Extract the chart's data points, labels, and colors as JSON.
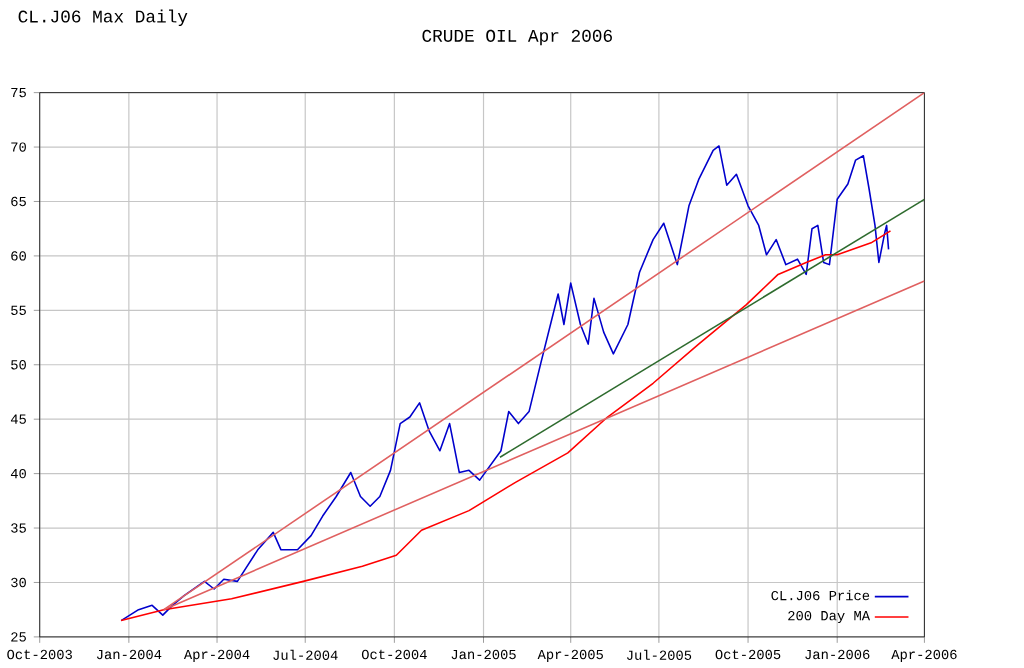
{
  "chart_data": {
    "type": "line",
    "title": "CRUDE OIL Apr 2006",
    "annotations": [
      "CL.J06 Max Daily"
    ],
    "xlim": [
      "2003-10-01",
      "2006-04-01"
    ],
    "xticks": [
      {
        "value": "2003-10-01",
        "label": "Oct-2003"
      },
      {
        "value": "2004-01-01",
        "label": "Jan-2004"
      },
      {
        "value": "2004-04-01",
        "label": "Apr-2004"
      },
      {
        "value": "2004-07-01",
        "label": "Jul-2004"
      },
      {
        "value": "2004-10-01",
        "label": "Oct-2004"
      },
      {
        "value": "2005-01-01",
        "label": "Jan-2005"
      },
      {
        "value": "2005-04-01",
        "label": "Apr-2005"
      },
      {
        "value": "2005-07-01",
        "label": "Jul-2005"
      },
      {
        "value": "2005-10-01",
        "label": "Oct-2005"
      },
      {
        "value": "2006-01-01",
        "label": "Jan-2006"
      },
      {
        "value": "2006-04-01",
        "label": "Apr-2006"
      }
    ],
    "ylim": [
      25,
      75
    ],
    "yticks": [
      25,
      30,
      35,
      40,
      45,
      50,
      55,
      60,
      65,
      70,
      75
    ],
    "grid": true,
    "legend": "bottom right",
    "series": [
      {
        "name": "CL.J06 Price",
        "color": "#0000cc",
        "x": [
          "2003-12-24",
          "2004-01-11",
          "2004-01-25",
          "2004-02-05",
          "2004-02-15",
          "2004-02-27",
          "2004-03-19",
          "2004-03-29",
          "2004-04-08",
          "2004-04-22",
          "2004-05-13",
          "2004-05-29",
          "2004-06-06",
          "2004-06-23",
          "2004-07-07",
          "2004-07-19",
          "2004-08-02",
          "2004-08-17",
          "2004-08-27",
          "2004-09-06",
          "2004-09-16",
          "2004-09-27",
          "2004-10-07",
          "2004-10-17",
          "2004-10-27",
          "2004-11-06",
          "2004-11-17",
          "2004-11-27",
          "2004-12-07",
          "2004-12-17",
          "2004-12-28",
          "2005-01-19",
          "2005-01-27",
          "2005-02-06",
          "2005-02-17",
          "2005-03-01",
          "2005-03-19",
          "2005-03-25",
          "2005-04-01",
          "2005-04-11",
          "2005-04-19",
          "2005-04-25",
          "2005-05-05",
          "2005-05-15",
          "2005-05-30",
          "2005-06-11",
          "2005-06-25",
          "2005-07-06",
          "2005-07-20",
          "2005-08-01",
          "2005-08-11",
          "2005-08-26",
          "2005-09-01",
          "2005-09-09",
          "2005-09-19",
          "2005-10-01",
          "2005-10-12",
          "2005-10-20",
          "2005-10-30",
          "2005-11-09",
          "2005-11-21",
          "2005-11-30",
          "2005-12-06",
          "2005-12-12",
          "2005-12-18",
          "2005-12-24",
          "2006-01-01",
          "2006-01-12",
          "2006-01-20",
          "2006-01-28",
          "2006-02-03",
          "2006-02-09",
          "2006-02-13",
          "2006-02-19",
          "2006-02-21",
          "2006-02-23"
        ],
        "values": [
          26.5,
          27.5,
          27.9,
          27.0,
          27.9,
          28.8,
          30.1,
          29.4,
          30.3,
          30.1,
          33.0,
          34.6,
          33.0,
          33.0,
          34.3,
          36.1,
          37.9,
          40.1,
          37.9,
          37.0,
          37.9,
          40.3,
          44.6,
          45.2,
          46.5,
          43.9,
          42.1,
          44.6,
          40.1,
          40.3,
          39.4,
          42.1,
          45.7,
          44.6,
          45.7,
          50.1,
          56.5,
          53.7,
          57.5,
          53.7,
          51.9,
          56.1,
          53.0,
          51.0,
          53.7,
          58.5,
          61.5,
          63.0,
          59.2,
          64.6,
          67.0,
          69.7,
          70.1,
          66.5,
          67.5,
          64.6,
          62.8,
          60.1,
          61.5,
          59.2,
          59.7,
          58.3,
          62.5,
          62.8,
          59.4,
          59.2,
          65.2,
          66.6,
          68.8,
          69.2,
          66.1,
          62.8,
          59.4,
          62.1,
          62.8,
          60.6
        ]
      },
      {
        "name": "200 Day MA",
        "color": "#ff0000",
        "x": [
          "2003-12-24",
          "2004-02-06",
          "2004-04-16",
          "2004-06-29",
          "2004-08-29",
          "2004-10-03",
          "2004-10-29",
          "2004-12-17",
          "2005-02-03",
          "2005-03-29",
          "2005-05-09",
          "2005-06-25",
          "2005-08-11",
          "2005-09-29",
          "2005-11-01",
          "2005-11-30",
          "2005-12-20",
          "2006-01-01",
          "2006-02-05",
          "2006-02-25"
        ],
        "values": [
          26.5,
          27.5,
          28.5,
          30.1,
          31.5,
          32.5,
          34.8,
          36.6,
          39.2,
          41.9,
          45.2,
          48.3,
          51.9,
          55.5,
          58.3,
          59.4,
          60.1,
          60.1,
          61.2,
          62.3
        ]
      },
      {
        "color": "#e06060",
        "x": [
          "2004-02-06",
          "2006-04-01"
        ],
        "values": [
          27.5,
          75
        ]
      },
      {
        "color": "#e06060",
        "x": [
          "2004-02-06",
          "2006-04-01"
        ],
        "values": [
          27.5,
          57.7
        ]
      },
      {
        "color": "#2e6b2e",
        "x": [
          "2005-01-18",
          "2006-04-01"
        ],
        "values": [
          41.5,
          65.2
        ]
      }
    ]
  }
}
